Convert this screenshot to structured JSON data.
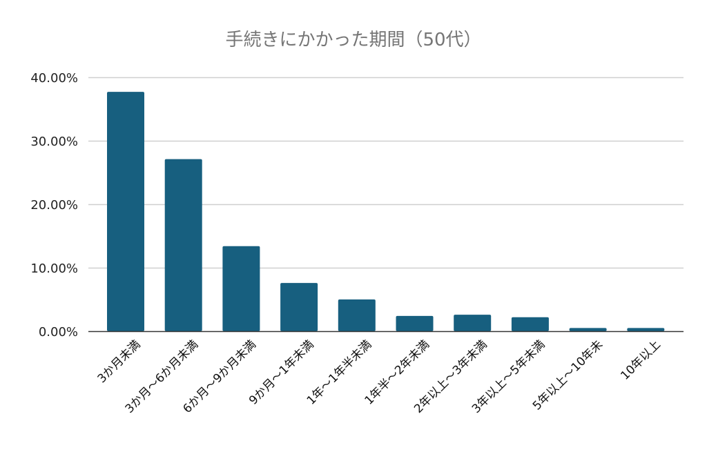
{
  "chart_data": {
    "type": "bar",
    "title": "手続きにかかった期間（50代）",
    "xlabel": "",
    "ylabel": "",
    "ylim": [
      0,
      40
    ],
    "yticks": [
      0,
      10,
      20,
      30,
      40
    ],
    "ytick_labels": [
      "0.00%",
      "10.00%",
      "20.00%",
      "30.00%",
      "40.00%"
    ],
    "grid": true,
    "categories": [
      "3か月未満",
      "3か月～6か月未満",
      "6か月～9か月未満",
      "9か月～1年未満",
      "1年～1年半未満",
      "1年半～2年未満",
      "2年以上～3年未満",
      "3年以上～5年未満",
      "5年以上～10年未",
      "10年以上"
    ],
    "values": [
      37.7,
      27.1,
      13.4,
      7.6,
      5.0,
      2.4,
      2.6,
      2.2,
      0.5,
      0.5
    ],
    "bar_color": "#175f7f"
  }
}
